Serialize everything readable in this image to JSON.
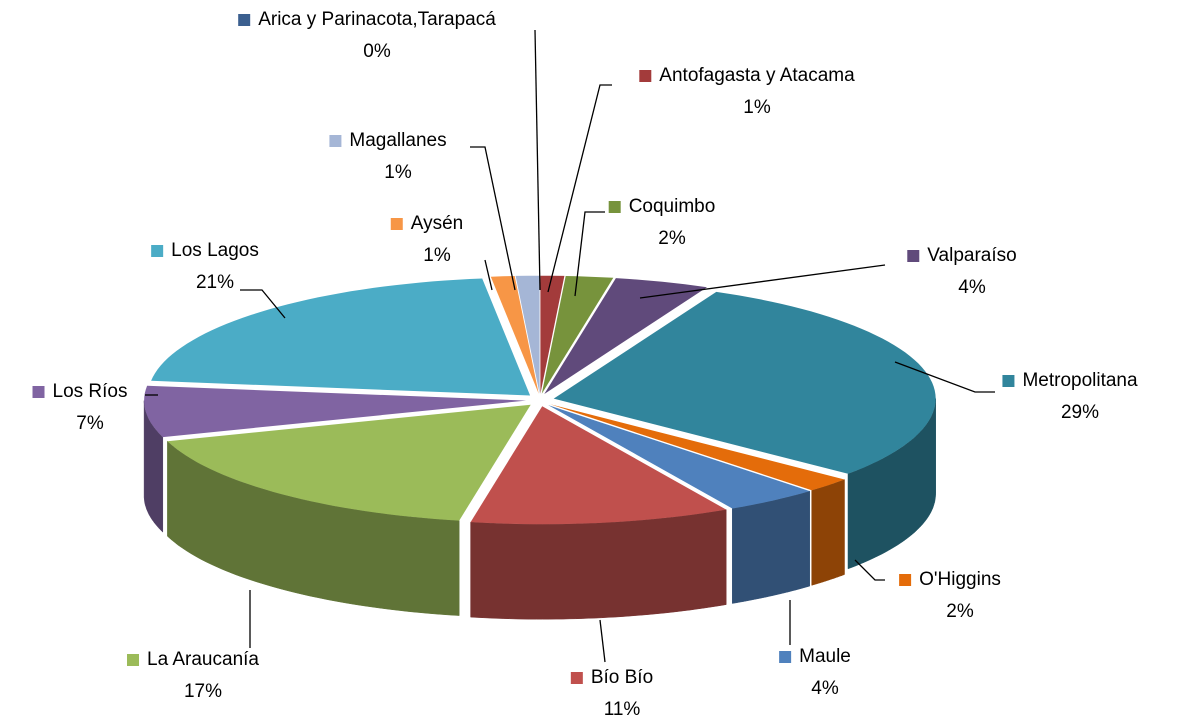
{
  "chart_data": {
    "type": "pie3d",
    "categories": [
      "Arica y Parinacota,Tarapacá",
      "Antofagasta y Atacama",
      "Coquimbo",
      "Valparaíso",
      "Metropolitana",
      "O'Higgins",
      "Maule",
      "Bío Bío",
      "La Araucanía",
      "Los Ríos",
      "Los Lagos",
      "Aysén",
      "Magallanes"
    ],
    "values": [
      0,
      1,
      2,
      4,
      29,
      2,
      4,
      11,
      17,
      7,
      21,
      1,
      1
    ],
    "value_labels": [
      "0%",
      "1%",
      "2%",
      "4%",
      "29%",
      "2%",
      "4%",
      "11%",
      "17%",
      "7%",
      "21%",
      "1%",
      "1%"
    ],
    "colors": [
      "#3b5f8f",
      "#a33b3b",
      "#77933c",
      "#604a7b",
      "#31859c",
      "#e46c0a",
      "#4f81bd",
      "#c0504d",
      "#9bbb59",
      "#8064a2",
      "#4bacc6",
      "#f79646",
      "#a5b6d6"
    ]
  }
}
